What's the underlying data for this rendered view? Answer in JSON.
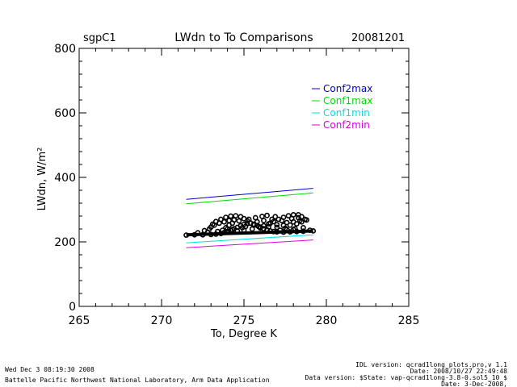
{
  "header": {
    "site": "sgpC1",
    "date": "20081201"
  },
  "footer": {
    "left_line1": "Wed Dec  3 08:19:30 2008",
    "left_line2": "Battelle Pacific Northwest National Laboratory, Arm Data Application",
    "right_line1": "IDL version: qcrad1long_plots.pro,v 1.1",
    "right_line2": "Date: 2008/10/27 22:49:48",
    "right_line3": "Data version: $State: vap-qcrad1long-3.8-0.sol5_10 $",
    "right_line4": "Date: 3-Dec-2008,"
  },
  "colors": {
    "Conf2max": "#0000cc",
    "Conf1max": "#00dd00",
    "Conf1min": "#00e0e0",
    "Conf2min": "#dd00dd",
    "data": "#000000"
  },
  "chart_data": {
    "type": "line",
    "title": "LWdn to To Comparisons",
    "xlabel": "To, Degree K",
    "ylabel": "LWdn, W/m²",
    "xlim": [
      265,
      285
    ],
    "ylim": [
      0,
      800
    ],
    "xticks": [
      265,
      270,
      275,
      280,
      285
    ],
    "yticks": [
      0,
      200,
      400,
      600,
      800
    ],
    "legend_position": "top-right",
    "series": [
      {
        "name": "Conf2max",
        "x": [
          271.5,
          279.2
        ],
        "y": [
          332,
          366
        ]
      },
      {
        "name": "Conf1max",
        "x": [
          271.5,
          279.2
        ],
        "y": [
          318,
          352
        ]
      },
      {
        "name": "Conf1min",
        "x": [
          271.5,
          279.2
        ],
        "y": [
          197,
          222
        ]
      },
      {
        "name": "Conf2min",
        "x": [
          271.5,
          279.2
        ],
        "y": [
          182,
          206
        ]
      }
    ],
    "scatter_points": [
      [
        271.5,
        221
      ],
      [
        272.0,
        222
      ],
      [
        272.5,
        222
      ],
      [
        273.0,
        223
      ],
      [
        273.3,
        224
      ],
      [
        273.6,
        226
      ],
      [
        273.8,
        229
      ],
      [
        274.0,
        232
      ],
      [
        274.2,
        236
      ],
      [
        274.4,
        241
      ],
      [
        274.6,
        245
      ],
      [
        274.8,
        250
      ],
      [
        275.0,
        254
      ],
      [
        275.2,
        257
      ],
      [
        275.4,
        258
      ],
      [
        275.6,
        255
      ],
      [
        275.8,
        251
      ],
      [
        276.0,
        246
      ],
      [
        276.2,
        241
      ],
      [
        276.4,
        237
      ],
      [
        276.6,
        234
      ],
      [
        276.8,
        232
      ],
      [
        277.0,
        231
      ],
      [
        277.4,
        230
      ],
      [
        277.8,
        231
      ],
      [
        278.2,
        232
      ],
      [
        278.6,
        233
      ],
      [
        279.2,
        234
      ],
      [
        273.1,
        255
      ],
      [
        273.3,
        263
      ],
      [
        273.6,
        270
      ],
      [
        273.9,
        276
      ],
      [
        274.2,
        280
      ],
      [
        274.5,
        281
      ],
      [
        274.8,
        278
      ],
      [
        275.0,
        272
      ],
      [
        275.2,
        265
      ],
      [
        275.4,
        258
      ],
      [
        275.6,
        252
      ],
      [
        275.9,
        247
      ],
      [
        276.2,
        250
      ],
      [
        276.5,
        256
      ],
      [
        276.8,
        263
      ],
      [
        277.1,
        270
      ],
      [
        277.4,
        276
      ],
      [
        277.7,
        281
      ],
      [
        278.0,
        284
      ],
      [
        278.3,
        284
      ],
      [
        278.5,
        278
      ],
      [
        278.7,
        270
      ],
      [
        278.5,
        262
      ],
      [
        278.2,
        256
      ],
      [
        277.8,
        252
      ],
      [
        277.4,
        251
      ],
      [
        277.0,
        253
      ],
      [
        276.6,
        258
      ],
      [
        273.4,
        232
      ],
      [
        273.7,
        236
      ],
      [
        274.0,
        240
      ],
      [
        274.3,
        238
      ],
      [
        274.6,
        234
      ],
      [
        275.0,
        236
      ],
      [
        275.5,
        240
      ],
      [
        276.0,
        243
      ],
      [
        276.5,
        247
      ],
      [
        277.0,
        245
      ],
      [
        277.5,
        242
      ],
      [
        278.0,
        238
      ],
      [
        272.8,
        230
      ],
      [
        273.0,
        246
      ],
      [
        273.2,
        252
      ],
      [
        273.5,
        258
      ],
      [
        273.8,
        262
      ],
      [
        274.1,
        266
      ],
      [
        274.4,
        268
      ],
      [
        274.7,
        265
      ],
      [
        275.3,
        270
      ],
      [
        275.7,
        275
      ],
      [
        276.1,
        279
      ],
      [
        276.4,
        282
      ],
      [
        276.9,
        278
      ],
      [
        277.3,
        266
      ],
      [
        277.6,
        260
      ],
      [
        278.0,
        262
      ],
      [
        278.4,
        266
      ],
      [
        278.8,
        268
      ],
      [
        276.2,
        266
      ],
      [
        275.8,
        262
      ],
      [
        275.1,
        248
      ],
      [
        274.9,
        244
      ],
      [
        273.9,
        244
      ],
      [
        274.1,
        252
      ],
      [
        274.3,
        258
      ],
      [
        277.2,
        236
      ],
      [
        277.6,
        238
      ],
      [
        278.1,
        241
      ],
      [
        278.6,
        244
      ],
      [
        279.0,
        236
      ],
      [
        272.2,
        228
      ],
      [
        272.6,
        235
      ],
      [
        272.9,
        240
      ],
      [
        276.7,
        270
      ],
      [
        277.9,
        272
      ],
      [
        278.3,
        275
      ]
    ]
  }
}
